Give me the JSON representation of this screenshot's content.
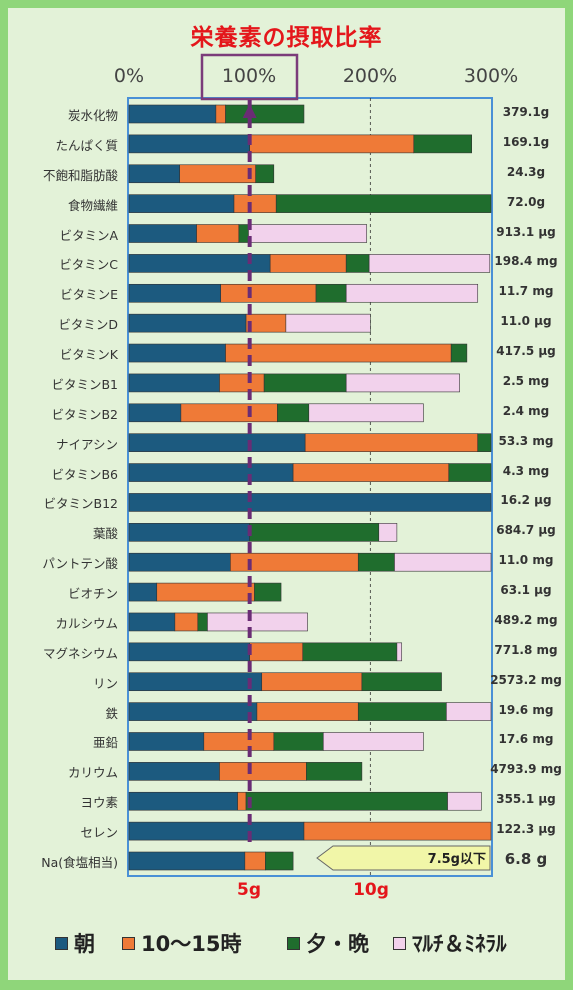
{
  "title": "栄養素の摂取比率",
  "top_axis": [
    "0%",
    "100%",
    "200%",
    "300%"
  ],
  "bottom_axis": [
    "5g",
    "10g"
  ],
  "legend": [
    {
      "label": "朝",
      "color": "#1c5a7f"
    },
    {
      "label": "10～15時",
      "color": "#ef7a37"
    },
    {
      "label": "夕・晩",
      "color": "#1f6d2d"
    },
    {
      "label": "ﾏﾙﾁ＆ﾐﾈﾗﾙ",
      "color": "#f2d2ec"
    }
  ],
  "callout": "7.5g以下",
  "chart_data": {
    "type": "bar",
    "orientation": "horizontal",
    "stacked": true,
    "xlabel": "",
    "ylabel": "",
    "xlim": [
      0,
      300
    ],
    "title": "栄養素の摂取比率",
    "categories": [
      "炭水化物",
      "たんぱく質",
      "不飽和脂肪酸",
      "食物繊維",
      "ビタミンA",
      "ビタミンC",
      "ビタミンE",
      "ビタミンD",
      "ビタミンK",
      "ビタミンB1",
      "ビタミンB2",
      "ナイアシン",
      "ビタミンB6",
      "ビタミンB12",
      "葉酸",
      "パントテン酸",
      "ビオチン",
      "カルシウム",
      "マグネシウム",
      "リン",
      "鉄",
      "亜鉛",
      "カリウム",
      "ヨウ素",
      "セレン",
      "Na(食塩相当)"
    ],
    "amounts": [
      "379.1g",
      "169.1g",
      "24.3g",
      "72.0g",
      "913.1 μg",
      "198.4 mg",
      "11.7 mg",
      "11.0 μg",
      "417.5 μg",
      "2.5 mg",
      "2.4 mg",
      "53.3 mg",
      "4.3 mg",
      "16.2 μg",
      "684.7 μg",
      "11.0 mg",
      "63.1 μg",
      "489.2 mg",
      "771.8 mg",
      "2573.2 mg",
      "19.6 mg",
      "17.6 mg",
      "4793.9 mg",
      "355.1 μg",
      "122.3 μg",
      "6.8 g"
    ],
    "series": [
      {
        "name": "朝",
        "values": [
          72,
          100,
          42,
          87,
          56,
          117,
          76,
          97,
          80,
          75,
          43,
          146,
          136,
          300,
          100,
          84,
          23,
          38,
          100,
          110,
          106,
          62,
          75,
          90,
          145,
          96
        ]
      },
      {
        "name": "10～15時",
        "values": [
          8,
          136,
          63,
          35,
          35,
          63,
          79,
          33,
          187,
          37,
          80,
          143,
          129,
          0,
          0,
          106,
          81,
          19,
          44,
          83,
          84,
          58,
          72,
          7,
          155,
          17
        ]
      },
      {
        "name": "夕・晩",
        "values": [
          65,
          48,
          15,
          180,
          8,
          19,
          25,
          0,
          13,
          68,
          26,
          12,
          37,
          0,
          107,
          30,
          22,
          8,
          78,
          66,
          73,
          41,
          46,
          167,
          0,
          23
        ]
      },
      {
        "name": "ﾏﾙﾁ＆ﾐﾈﾗﾙ",
        "values": [
          0,
          0,
          0,
          0,
          98,
          100,
          109,
          70,
          0,
          94,
          95,
          0,
          0,
          0,
          15,
          82,
          0,
          83,
          4,
          0,
          40,
          83,
          0,
          28,
          0,
          0
        ]
      }
    ]
  }
}
